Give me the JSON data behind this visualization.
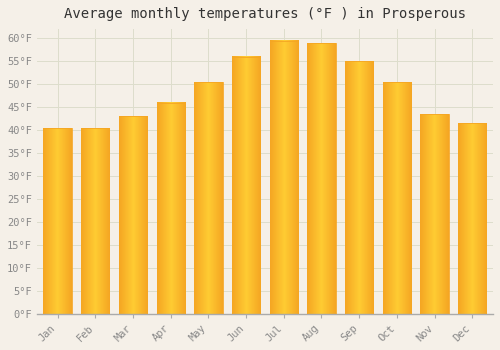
{
  "title": "Average monthly temperatures (°F ) in Prosperous",
  "months": [
    "Jan",
    "Feb",
    "Mar",
    "Apr",
    "May",
    "Jun",
    "Jul",
    "Aug",
    "Sep",
    "Oct",
    "Nov",
    "Dec"
  ],
  "values": [
    40.5,
    40.5,
    43.0,
    46.0,
    50.5,
    56.0,
    59.5,
    59.0,
    55.0,
    50.5,
    43.5,
    41.5
  ],
  "bar_color_left": "#F5A623",
  "bar_color_center": "#FFCC33",
  "bar_color_right": "#F5A623",
  "background_color": "#F5F0E8",
  "plot_bg_color": "#F5F0E8",
  "grid_color": "#DDDDCC",
  "ylim": [
    0,
    62
  ],
  "ytick_values": [
    0,
    5,
    10,
    15,
    20,
    25,
    30,
    35,
    40,
    45,
    50,
    55,
    60
  ],
  "title_fontsize": 10,
  "tick_fontsize": 7.5,
  "tick_color": "#888888",
  "font_family": "monospace"
}
